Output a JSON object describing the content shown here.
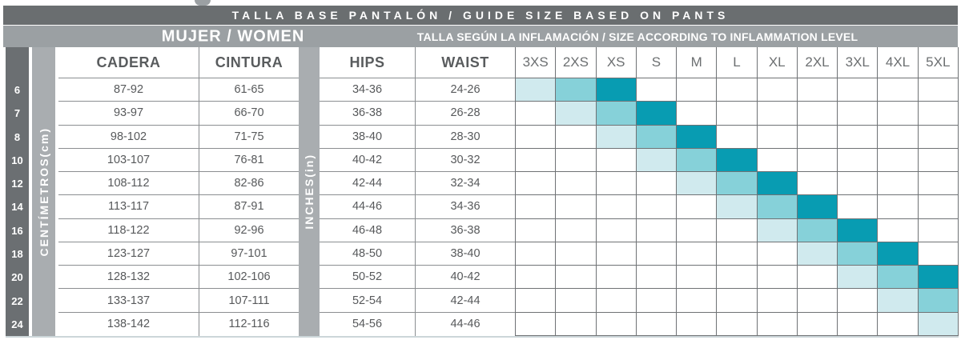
{
  "header": {
    "title": "TALLA BASE PANTALÓN / GUIDE SIZE BASED ON PANTS",
    "women_label": "MUJER / WOMEN",
    "inflammation_label": "TALLA SEGÚN LA INFLAMACIÓN / SIZE ACCORDING TO INFLAMMATION LEVEL"
  },
  "columns": {
    "cadera": "CADERA",
    "cintura": "CINTURA",
    "hips": "HIPS",
    "waist": "WAIST",
    "cm_label": "CENTÍMETROS(cm)",
    "in_label": "INCHES(in)",
    "sizes": [
      "3XS",
      "2XS",
      "XS",
      "S",
      "M",
      "L",
      "XL",
      "2XL",
      "3XL",
      "4XL",
      "5XL"
    ]
  },
  "rows": [
    {
      "size": "6",
      "cadera": "87-92",
      "cintura": "61-65",
      "hips": "34-36",
      "waist": "24-26",
      "shades": {
        "3XS": "light",
        "2XS": "medium",
        "XS": "dark"
      }
    },
    {
      "size": "7",
      "cadera": "93-97",
      "cintura": "66-70",
      "hips": "36-38",
      "waist": "26-28",
      "shades": {
        "2XS": "light",
        "XS": "medium",
        "S": "dark"
      }
    },
    {
      "size": "8",
      "cadera": "98-102",
      "cintura": "71-75",
      "hips": "38-40",
      "waist": "28-30",
      "shades": {
        "XS": "light",
        "S": "medium",
        "M": "dark"
      }
    },
    {
      "size": "10",
      "cadera": "103-107",
      "cintura": "76-81",
      "hips": "40-42",
      "waist": "30-32",
      "shades": {
        "S": "light",
        "M": "medium",
        "L": "dark"
      }
    },
    {
      "size": "12",
      "cadera": "108-112",
      "cintura": "82-86",
      "hips": "42-44",
      "waist": "32-34",
      "shades": {
        "M": "light",
        "L": "medium",
        "XL": "dark"
      }
    },
    {
      "size": "14",
      "cadera": "113-117",
      "cintura": "87-91",
      "hips": "44-46",
      "waist": "34-36",
      "shades": {
        "L": "light",
        "XL": "medium",
        "2XL": "dark"
      }
    },
    {
      "size": "16",
      "cadera": "118-122",
      "cintura": "92-96",
      "hips": "46-48",
      "waist": "36-38",
      "shades": {
        "XL": "light",
        "2XL": "medium",
        "3XL": "dark"
      }
    },
    {
      "size": "18",
      "cadera": "123-127",
      "cintura": "97-101",
      "hips": "48-50",
      "waist": "38-40",
      "shades": {
        "2XL": "light",
        "3XL": "medium",
        "4XL": "dark"
      }
    },
    {
      "size": "20",
      "cadera": "128-132",
      "cintura": "102-106",
      "hips": "50-52",
      "waist": "40-42",
      "shades": {
        "3XL": "light",
        "4XL": "medium",
        "5XL": "dark"
      }
    },
    {
      "size": "22",
      "cadera": "133-137",
      "cintura": "107-111",
      "hips": "52-54",
      "waist": "42-44",
      "shades": {
        "4XL": "light",
        "5XL": "medium"
      }
    },
    {
      "size": "24",
      "cadera": "138-142",
      "cintura": "112-116",
      "hips": "54-56",
      "waist": "44-46",
      "shades": {
        "5XL": "light"
      }
    }
  ],
  "colors": {
    "header_dark": "#6a6e70",
    "header_gray": "#9ba0a3",
    "side_dark": "#6b6f72",
    "side_gray": "#a9adb0",
    "shade_light": "#d0eaee",
    "shade_medium": "#86d1d9",
    "shade_dark": "#089cb2",
    "row_line": "#8b8e91",
    "matrix_line": "#6f7275"
  }
}
